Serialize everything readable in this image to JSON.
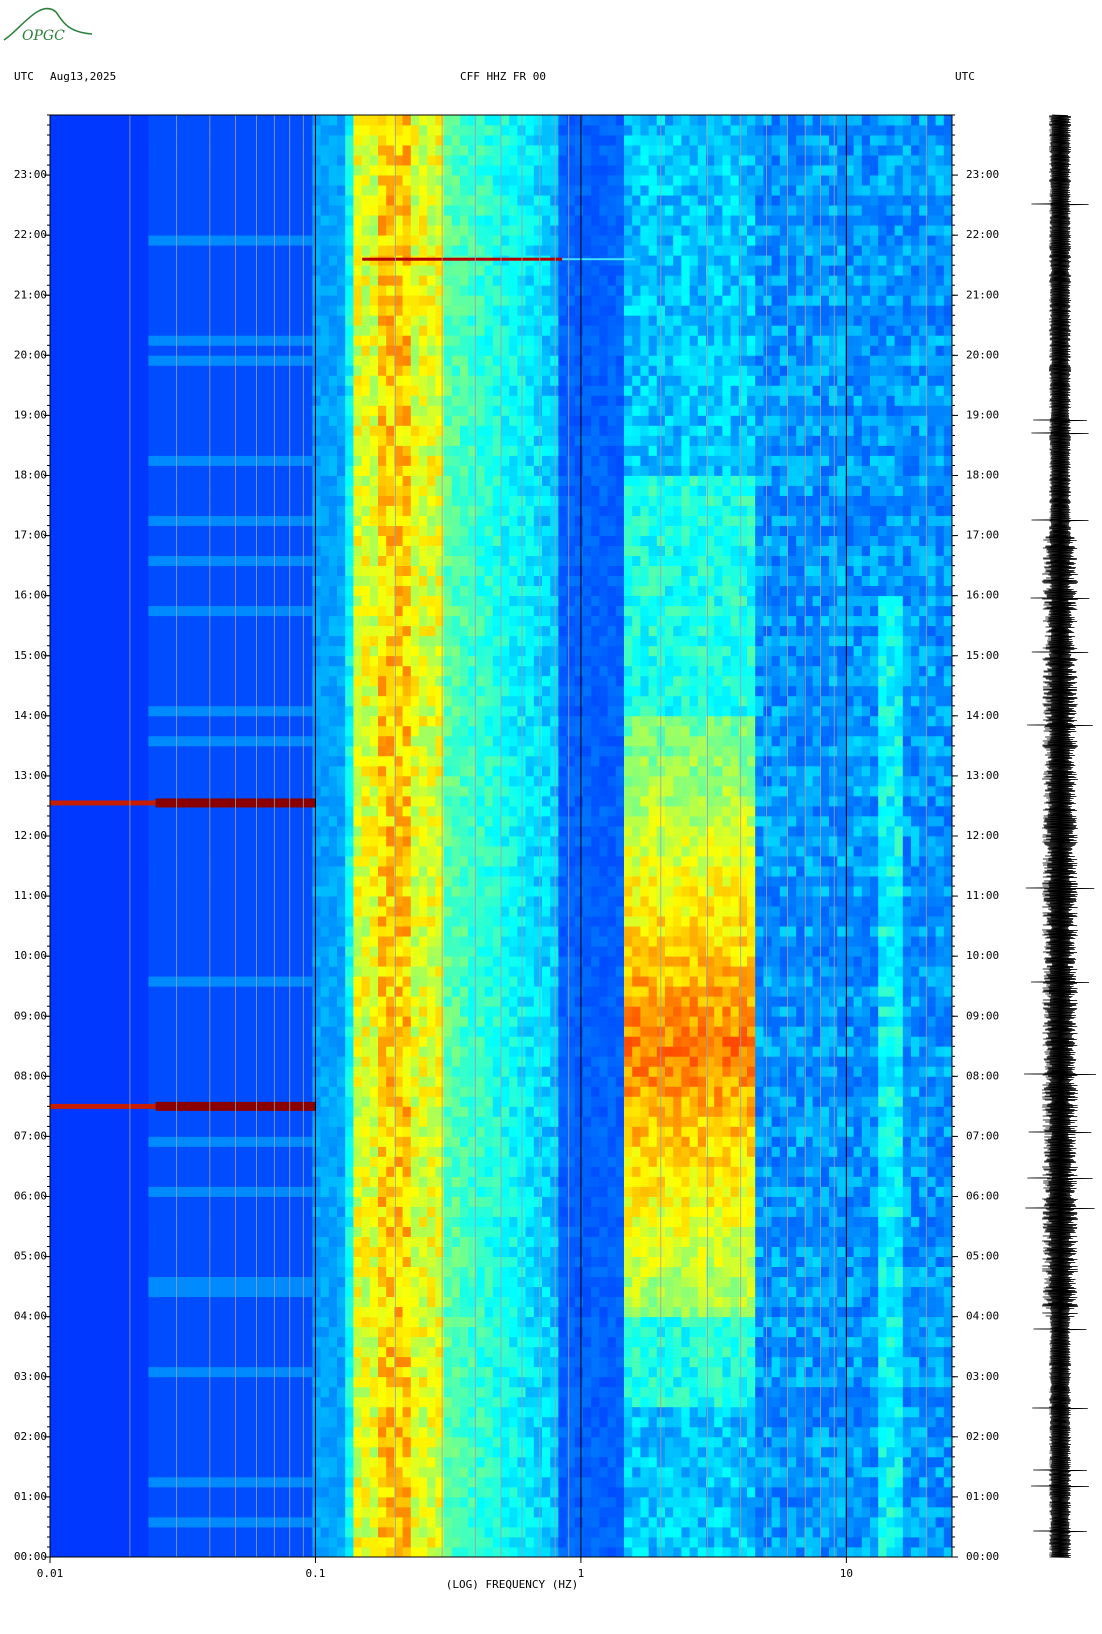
{
  "logo": "OPGC",
  "chart_data": {
    "type": "spectrogram",
    "title": "CFF HHZ FR 00",
    "timezone_left": "UTC",
    "date": "Aug13,2025",
    "timezone_right": "UTC",
    "xlabel": "(LOG) FREQUENCY (HZ)",
    "xscale": "log",
    "colormap": "jet",
    "xlim": [
      0.01,
      25
    ],
    "xticks": [
      0.01,
      0.1,
      1,
      10
    ],
    "ylim": [
      0,
      24
    ],
    "yticks": [
      {
        "value": 0,
        "label": "00:00"
      },
      {
        "value": 1,
        "label": "01:00"
      },
      {
        "value": 2,
        "label": "02:00"
      },
      {
        "value": 3,
        "label": "03:00"
      },
      {
        "value": 4,
        "label": "04:00"
      },
      {
        "value": 5,
        "label": "05:00"
      },
      {
        "value": 6,
        "label": "06:00"
      },
      {
        "value": 7,
        "label": "07:00"
      },
      {
        "value": 8,
        "label": "08:00"
      },
      {
        "value": 9,
        "label": "09:00"
      },
      {
        "value": 10,
        "label": "10:00"
      },
      {
        "value": 11,
        "label": "11:00"
      },
      {
        "value": 12,
        "label": "12:00"
      },
      {
        "value": 13,
        "label": "13:00"
      },
      {
        "value": 14,
        "label": "14:00"
      },
      {
        "value": 15,
        "label": "15:00"
      },
      {
        "value": 16,
        "label": "16:00"
      },
      {
        "value": 17,
        "label": "17:00"
      },
      {
        "value": 18,
        "label": "18:00"
      },
      {
        "value": 19,
        "label": "19:00"
      },
      {
        "value": 20,
        "label": "20:00"
      },
      {
        "value": 21,
        "label": "21:00"
      },
      {
        "value": 22,
        "label": "22:00"
      },
      {
        "value": 23,
        "label": "23:00"
      }
    ]
  }
}
